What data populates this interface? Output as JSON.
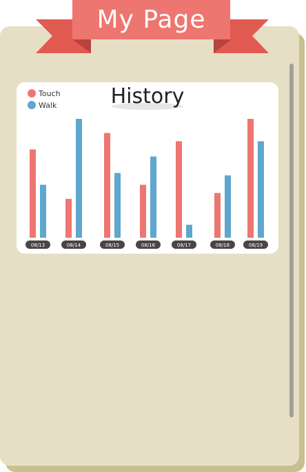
{
  "header": {
    "title": "My Page"
  },
  "colors": {
    "touch": "#ee7670",
    "walk": "#5ea7ce",
    "panel": "#e7dfc5",
    "ribbon": "#ee7670",
    "ribbon_dark": "#e15a52"
  },
  "chart_data": {
    "type": "bar",
    "title": "History",
    "categories": [
      "08/13",
      "08/14",
      "08/15",
      "08/16",
      "08/17",
      "08/18",
      "08/19"
    ],
    "series": [
      {
        "name": "Touch",
        "values": [
          75,
          33,
          89,
          45,
          82,
          38,
          101
        ]
      },
      {
        "name": "Walk",
        "values": [
          45,
          101,
          55,
          69,
          11,
          53,
          82
        ]
      }
    ],
    "ylim": [
      0,
      101
    ],
    "legend": "top-left",
    "grid": false
  }
}
